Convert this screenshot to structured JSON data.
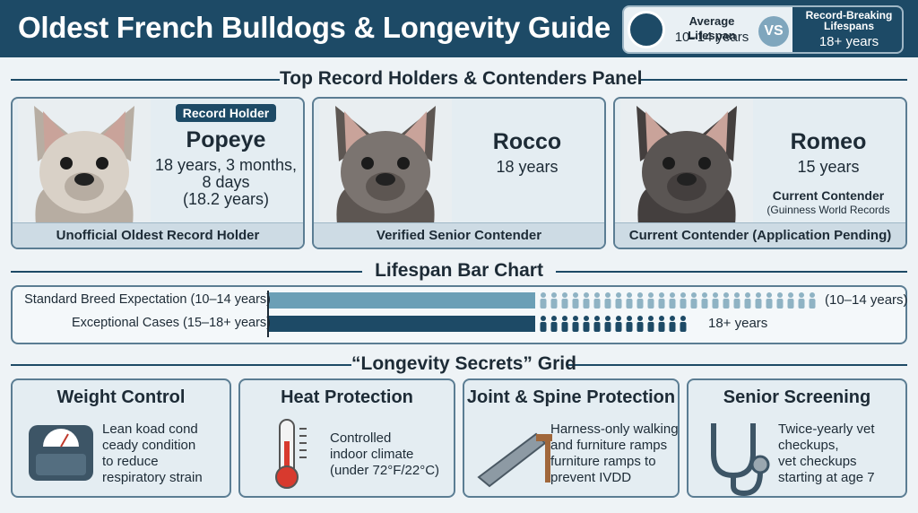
{
  "header": {
    "title": "Oldest French Bulldogs & Longevity Guide",
    "badge": {
      "left_label": "Average Lifespan",
      "left_value": "10–14 years",
      "vs": "VS",
      "right_label": "Record-Breaking Lifespans",
      "right_value": "18+ years"
    }
  },
  "record_panel": {
    "title": "Top Record Holders & Contenders Panel",
    "cards": [
      {
        "badge": "Record Holder",
        "name": "Popeye",
        "details": [
          "18 years, 3 months,",
          "8 days",
          "(18.2 years)"
        ],
        "caption": "Unofficial Oldest Record Holder"
      },
      {
        "name": "Rocco",
        "details": [
          "18 years"
        ],
        "caption": "Verified Senior Contender"
      },
      {
        "name": "Romeo",
        "details": [
          "15 years"
        ],
        "notes": [
          "Current Contender",
          "(Guinness World Records"
        ],
        "caption": "Current Contender (Application Pending)"
      }
    ]
  },
  "lifespan_chart": {
    "title": "Lifespan Bar Chart",
    "rows": [
      {
        "label": "Standard Breed Expectation (10–14 years)",
        "end_label": "(10–14 years)"
      },
      {
        "label": "Exceptional Cases (15–18+ years)",
        "end_label": "18+ years"
      }
    ]
  },
  "secrets_grid": {
    "title": "“Longevity Secrets” Grid",
    "items": [
      {
        "title": "Weight Control",
        "lines": [
          "Lean koad cond",
          "ceady condition",
          "to reduce",
          "respiratory strain"
        ]
      },
      {
        "title": "Heat Protection",
        "lines": [
          "Controlled",
          "indoor climate",
          "(under 72°F/22°C)"
        ]
      },
      {
        "title": "Joint & Spine Protection",
        "lines": [
          "Harness-only walking",
          "and furniture ramps",
          "furniture ramps to",
          "prevent IVDD"
        ]
      },
      {
        "title": "Senior Screening",
        "lines": [
          "Twice-yearly vet",
          "checkups,",
          "vet checkups",
          "starting at age 7"
        ]
      }
    ]
  }
}
